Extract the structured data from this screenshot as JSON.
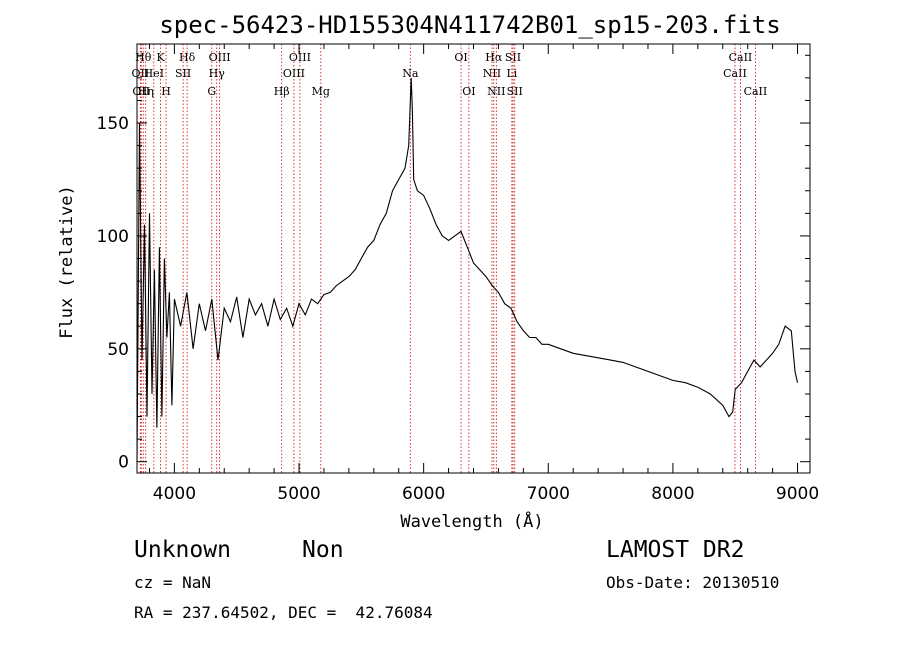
{
  "chart_data": {
    "type": "line",
    "title": "spec-56423-HD155304N411742B01_sp15-203.fits",
    "xlabel": "Wavelength (Å)",
    "ylabel": "Flux (relative)",
    "xlim": [
      3700,
      9100
    ],
    "ylim": [
      -5,
      185
    ],
    "xticks": [
      4000,
      5000,
      6000,
      7000,
      8000,
      9000
    ],
    "yticks": [
      0,
      50,
      100,
      150
    ],
    "grid": false,
    "legend": "none",
    "line_color": "#000000",
    "marker_color": "#cc0000",
    "series": [
      {
        "x": [
          3700,
          3720,
          3740,
          3760,
          3780,
          3800,
          3820,
          3840,
          3860,
          3880,
          3900,
          3920,
          3940,
          3960,
          3980,
          4000,
          4050,
          4100,
          4150,
          4200,
          4250,
          4300,
          4350,
          4400,
          4450,
          4500,
          4550,
          4600,
          4650,
          4700,
          4750,
          4800,
          4850,
          4900,
          4950,
          5000,
          5050,
          5100,
          5150,
          5200,
          5250,
          5300,
          5350,
          5400,
          5450,
          5500,
          5550,
          5600,
          5650,
          5700,
          5750,
          5800,
          5850,
          5880,
          5900,
          5910,
          5920,
          5950,
          6000,
          6050,
          6100,
          6150,
          6200,
          6250,
          6300,
          6350,
          6400,
          6450,
          6500,
          6550,
          6600,
          6650,
          6700,
          6750,
          6800,
          6850,
          6900,
          6950,
          7000,
          7100,
          7200,
          7300,
          7400,
          7500,
          7600,
          7700,
          7800,
          7900,
          8000,
          8100,
          8200,
          8300,
          8400,
          8450,
          8480,
          8500,
          8550,
          8600,
          8650,
          8700,
          8750,
          8800,
          8850,
          8900,
          8950,
          8980,
          9000
        ],
        "y": [
          0,
          150,
          45,
          105,
          20,
          110,
          30,
          85,
          15,
          95,
          20,
          90,
          55,
          75,
          25,
          72,
          60,
          75,
          50,
          70,
          58,
          72,
          45,
          68,
          62,
          73,
          55,
          72,
          65,
          70,
          60,
          72,
          63,
          68,
          60,
          70,
          65,
          72,
          70,
          74,
          75,
          78,
          80,
          82,
          85,
          90,
          95,
          98,
          105,
          110,
          120,
          125,
          130,
          140,
          170,
          155,
          125,
          120,
          118,
          112,
          105,
          100,
          98,
          100,
          102,
          95,
          88,
          85,
          82,
          78,
          75,
          70,
          68,
          62,
          58,
          55,
          55,
          52,
          52,
          50,
          48,
          47,
          46,
          45,
          44,
          42,
          40,
          38,
          36,
          35,
          33,
          30,
          25,
          20,
          22,
          32,
          35,
          40,
          45,
          42,
          45,
          48,
          52,
          60,
          58,
          40,
          35
        ]
      }
    ],
    "line_markers": [
      {
        "wl": 3727,
        "label": "OII",
        "row": 2
      },
      {
        "wl": 3734,
        "label": "OII",
        "row": 3
      },
      {
        "wl": 3750,
        "label": "Hθ",
        "row": 1
      },
      {
        "wl": 3770,
        "label": "Hη",
        "row": 3
      },
      {
        "wl": 3835,
        "label": "HeI",
        "row": 2
      },
      {
        "wl": 3889,
        "label": "K",
        "row": 1
      },
      {
        "wl": 3933,
        "label": "H",
        "row": 3
      },
      {
        "wl": 4070,
        "label": "SII",
        "row": 2
      },
      {
        "wl": 4102,
        "label": "Hδ",
        "row": 1
      },
      {
        "wl": 4300,
        "label": "G",
        "row": 3
      },
      {
        "wl": 4340,
        "label": "Hγ",
        "row": 2
      },
      {
        "wl": 4363,
        "label": "OIII",
        "row": 1
      },
      {
        "wl": 4861,
        "label": "Hβ",
        "row": 3
      },
      {
        "wl": 4959,
        "label": "OIII",
        "row": 2
      },
      {
        "wl": 5007,
        "label": "OIII",
        "row": 1
      },
      {
        "wl": 5175,
        "label": "Mg",
        "row": 3
      },
      {
        "wl": 5893,
        "label": "Na",
        "row": 2
      },
      {
        "wl": 6300,
        "label": "OI",
        "row": 1
      },
      {
        "wl": 6363,
        "label": "OI",
        "row": 3
      },
      {
        "wl": 6548,
        "label": "NII",
        "row": 2
      },
      {
        "wl": 6563,
        "label": "Hα",
        "row": 1
      },
      {
        "wl": 6583,
        "label": "NII",
        "row": 3
      },
      {
        "wl": 6708,
        "label": "Li",
        "row": 2
      },
      {
        "wl": 6717,
        "label": "SII",
        "row": 1
      },
      {
        "wl": 6731,
        "label": "SII",
        "row": 3
      },
      {
        "wl": 8498,
        "label": "CaII",
        "row": 2
      },
      {
        "wl": 8542,
        "label": "CaII",
        "row": 1
      },
      {
        "wl": 8662,
        "label": "CaII",
        "row": 3
      }
    ]
  },
  "info": {
    "classification": "Unknown",
    "subclass": "Non",
    "survey": "LAMOST DR2",
    "redshift": "cz = NaN",
    "obs_date": "Obs-Date: 20130510",
    "coords": "RA = 237.64502, DEC =  42.76084"
  }
}
